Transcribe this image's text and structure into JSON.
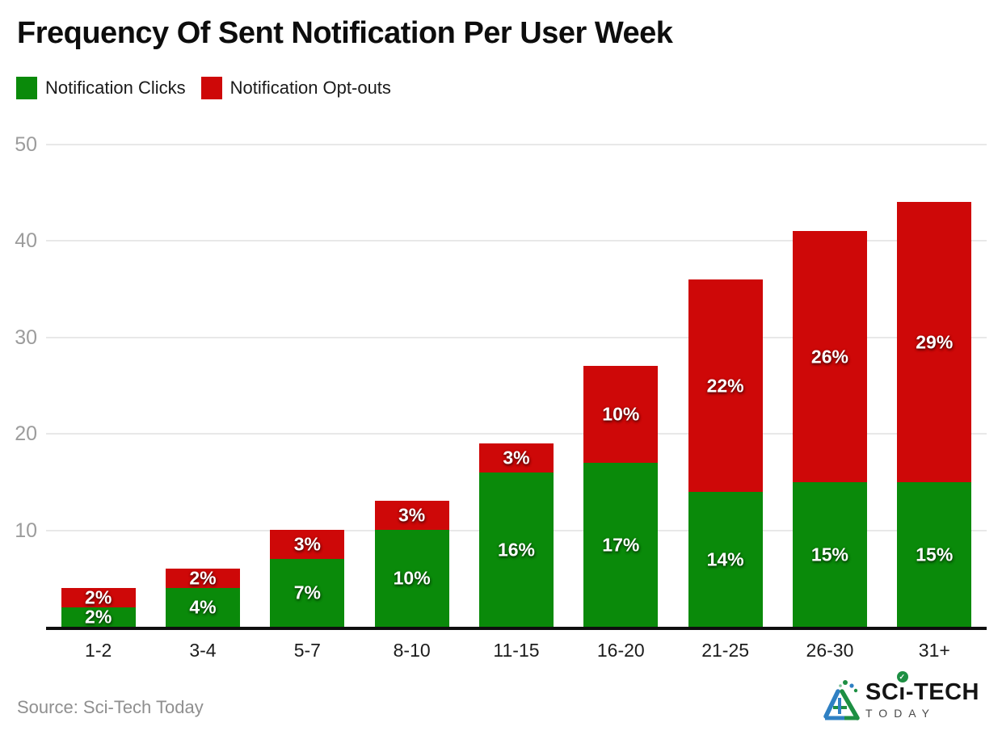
{
  "title": "Frequency Of Sent Notification Per User Week",
  "chart_data": {
    "type": "bar",
    "stacked": true,
    "title": "Frequency Of Sent Notification Per User Week",
    "categories": [
      "1-2",
      "3-4",
      "5-7",
      "8-10",
      "11-15",
      "16-20",
      "21-25",
      "26-30",
      "31+"
    ],
    "series": [
      {
        "name": "Notification Clicks",
        "color": "#0a8a0a",
        "values": [
          2,
          4,
          7,
          10,
          16,
          17,
          14,
          15,
          15
        ],
        "labels": [
          "2%",
          "4%",
          "7%",
          "10%",
          "16%",
          "17%",
          "14%",
          "15%",
          "15%"
        ]
      },
      {
        "name": "Notification Opt-outs",
        "color": "#ce0808",
        "values": [
          2,
          2,
          3,
          3,
          3,
          10,
          22,
          26,
          29
        ],
        "labels": [
          "2%",
          "2%",
          "3%",
          "3%",
          "3%",
          "10%",
          "22%",
          "26%",
          "29%"
        ]
      }
    ],
    "totals": [
      4,
      6,
      10,
      13,
      19,
      27,
      36,
      41,
      44
    ],
    "yticks": [
      10,
      20,
      30,
      40,
      50
    ],
    "ylim": [
      0,
      50
    ],
    "grid": true,
    "legend_position": "top-left",
    "xlabel": "",
    "ylabel": ""
  },
  "legend": [
    {
      "label": "Notification Clicks",
      "color": "#0a8a0a"
    },
    {
      "label": "Notification Opt-outs",
      "color": "#ce0808"
    }
  ],
  "footer": {
    "source": "Source: Sci-Tech Today"
  },
  "logo": {
    "brand_prefix": "SC",
    "brand_i": "ı",
    "brand_check": "✓",
    "brand_suffix": "-TECH",
    "brand_sub": "TODAY"
  },
  "colors": {
    "clicks_green": "#0a8a0a",
    "optouts_red": "#ce0808",
    "gridline": "#e8e8e8",
    "axis_line": "#0f0f0f",
    "tick_text": "#9c9c9c"
  }
}
